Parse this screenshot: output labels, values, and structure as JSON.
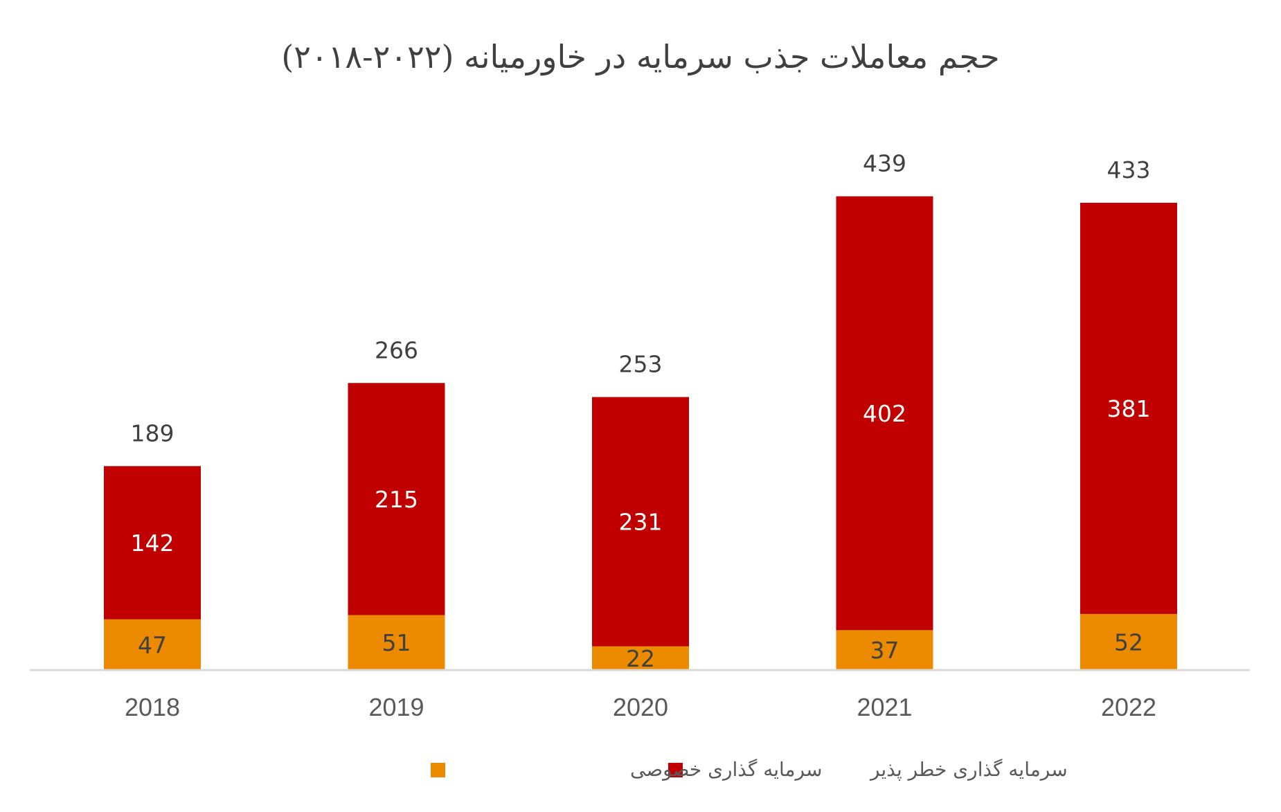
{
  "chart_data": {
    "type": "bar",
    "stacked": true,
    "title": "حجم معاملات جذب سرمایه در خاورمیانه (۲۰۲۲-۲۰۱۸)",
    "categories": [
      "2018",
      "2019",
      "2020",
      "2021",
      "2022"
    ],
    "series": [
      {
        "name": "سرمایه گذاری خصوصی",
        "color": "#ED8B00",
        "values": [
          47,
          51,
          22,
          37,
          52
        ]
      },
      {
        "name": "سرمایه گذاری خطر پذیر",
        "color": "#C00000",
        "values": [
          142,
          215,
          231,
          402,
          381
        ]
      }
    ],
    "totals": [
      189,
      266,
      253,
      439,
      433
    ],
    "ylim": [
      0,
      440
    ],
    "grid": false,
    "legend": "bottom",
    "axis_color": "#D9D9D9"
  }
}
